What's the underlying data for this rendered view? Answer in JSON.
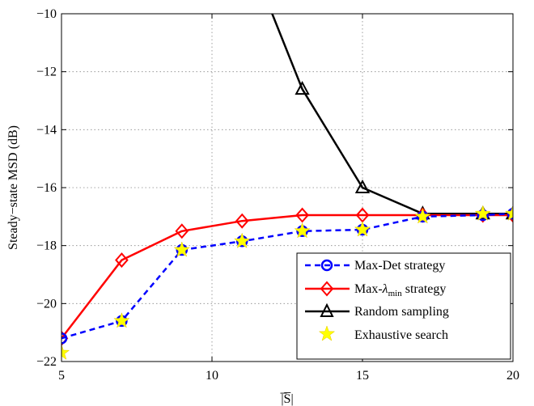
{
  "chart_data": {
    "type": "line",
    "xlabel": "|̅S̅|",
    "ylabel": "Steady−state MSD (dB)",
    "xlim": [
      5,
      20
    ],
    "ylim": [
      -22,
      -10
    ],
    "grid": true,
    "legend_position": "lower-right",
    "x_ticks": [
      5,
      10,
      15,
      20
    ],
    "y_ticks": [
      -22,
      -20,
      -18,
      -16,
      -14,
      -12,
      -10
    ],
    "x_tick_labels": [
      "5",
      "10",
      "15",
      "20"
    ],
    "y_tick_labels": [
      "−22",
      "−20",
      "−18",
      "−16",
      "−14",
      "−12",
      "−10"
    ],
    "series": [
      {
        "name": "Max-Det strategy",
        "color": "#0000ff",
        "line_style": "dashed",
        "marker": "circle",
        "x": [
          5,
          7,
          9,
          11,
          13,
          15,
          17,
          19,
          20
        ],
        "y": [
          -21.2,
          -20.6,
          -18.15,
          -17.85,
          -17.5,
          -17.45,
          -17.0,
          -16.95,
          -16.9
        ]
      },
      {
        "name": "Max-λmin strategy",
        "name_main": "Max-",
        "name_lambda": "λ",
        "name_sub": "min",
        "name_rest": " strategy",
        "color": "#ff0000",
        "line_style": "solid",
        "marker": "diamond",
        "x": [
          5,
          7,
          9,
          11,
          13,
          15,
          17,
          19,
          20
        ],
        "y": [
          -21.2,
          -18.5,
          -17.5,
          -17.15,
          -16.95,
          -16.95,
          -16.95,
          -16.95,
          -16.95
        ]
      },
      {
        "name": "Random sampling",
        "color": "#000000",
        "line_style": "solid",
        "marker": "triangle",
        "x": [
          12,
          13,
          15,
          17,
          19,
          20
        ],
        "y": [
          -10,
          -12.6,
          -16.0,
          -16.9,
          -16.9,
          -16.9
        ],
        "marker_x": [
          13,
          15,
          17,
          19,
          20
        ],
        "marker_y": [
          -12.6,
          -16.0,
          -16.9,
          -16.9,
          -16.9
        ]
      },
      {
        "name": "Exhaustive search",
        "color": "#ffff00",
        "line_style": "none",
        "marker": "star",
        "x": [
          5,
          7,
          9,
          11,
          13,
          15,
          17,
          19,
          20
        ],
        "y": [
          -21.7,
          -20.6,
          -18.15,
          -17.85,
          -17.5,
          -17.45,
          -17.0,
          -16.9,
          -16.9
        ]
      }
    ]
  }
}
